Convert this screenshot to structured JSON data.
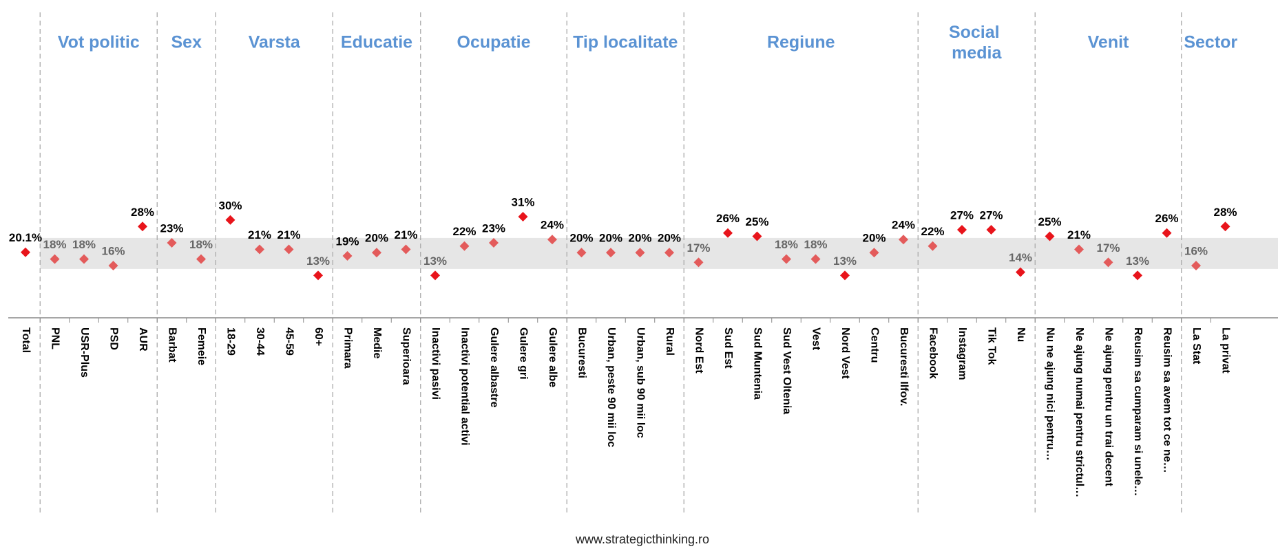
{
  "chart_data": {
    "type": "dot",
    "band": [
      15,
      24.5
    ],
    "band_color": "#e6e6e6",
    "header_color": "#5b93d3",
    "footer": "www.strategicthinking.ro",
    "groups": [
      {
        "name": null,
        "categories": [
          "Total"
        ],
        "values": [
          20.1
        ],
        "value_labels": [
          "20.1%"
        ],
        "colors": [
          "#e8141b"
        ],
        "label_colors": [
          "#000000"
        ]
      },
      {
        "name": "Vot politic",
        "categories": [
          "PNL",
          "USR-Plus",
          "PSD",
          "AUR"
        ],
        "values": [
          18,
          18,
          16,
          28
        ],
        "value_labels": [
          "18%",
          "18%",
          "16%",
          "28%"
        ],
        "colors": [
          "#e35b5b",
          "#e35b5b",
          "#e35b5b",
          "#e8141b"
        ],
        "label_colors": [
          "#666666",
          "#666666",
          "#666666",
          "#000000"
        ]
      },
      {
        "name": "Sex",
        "categories": [
          "Barbat",
          "Femeie"
        ],
        "values": [
          23,
          18
        ],
        "value_labels": [
          "23%",
          "18%"
        ],
        "colors": [
          "#e35b5b",
          "#e35b5b"
        ],
        "label_colors": [
          "#000000",
          "#666666"
        ]
      },
      {
        "name": "Varsta",
        "categories": [
          "18-29",
          "30-44",
          "45-59",
          "60+"
        ],
        "values": [
          30,
          21,
          21,
          13
        ],
        "value_labels": [
          "30%",
          "21%",
          "21%",
          "13%"
        ],
        "colors": [
          "#e8141b",
          "#e35b5b",
          "#e35b5b",
          "#e8141b"
        ],
        "label_colors": [
          "#000000",
          "#000000",
          "#000000",
          "#666666"
        ]
      },
      {
        "name": "Educatie",
        "categories": [
          "Primara",
          "Medie",
          "Superioara"
        ],
        "values": [
          19,
          20,
          21
        ],
        "value_labels": [
          "19%",
          "20%",
          "21%"
        ],
        "colors": [
          "#e35b5b",
          "#e35b5b",
          "#e35b5b"
        ],
        "label_colors": [
          "#000000",
          "#000000",
          "#000000"
        ]
      },
      {
        "name": "Ocupatie",
        "categories": [
          "Inactivi pasivi",
          "Inactivi potential activi",
          "Gulere albastre",
          "Gulere gri",
          "Gulere albe"
        ],
        "values": [
          13,
          22,
          23,
          31,
          24
        ],
        "value_labels": [
          "13%",
          "22%",
          "23%",
          "31%",
          "24%"
        ],
        "colors": [
          "#e8141b",
          "#e35b5b",
          "#e35b5b",
          "#e8141b",
          "#e35b5b"
        ],
        "label_colors": [
          "#666666",
          "#000000",
          "#000000",
          "#000000",
          "#000000"
        ]
      },
      {
        "name": "Tip localitate",
        "categories": [
          "Bucuresti",
          "Urban, peste 90 mii loc",
          "Urban, sub 90 mii loc",
          "Rural"
        ],
        "values": [
          20,
          20,
          20,
          20
        ],
        "value_labels": [
          "20%",
          "20%",
          "20%",
          "20%"
        ],
        "colors": [
          "#e35b5b",
          "#e35b5b",
          "#e35b5b",
          "#e35b5b"
        ],
        "label_colors": [
          "#000000",
          "#000000",
          "#000000",
          "#000000"
        ]
      },
      {
        "name": "Regiune",
        "categories": [
          "Nord Est",
          "Sud Est",
          "Sud Muntenia",
          "Sud Vest Oltenia",
          "Vest",
          "Nord Vest",
          "Centru",
          "Bucuresti Ilfov."
        ],
        "values": [
          17,
          26,
          25,
          18,
          18,
          13,
          20,
          24
        ],
        "value_labels": [
          "17%",
          "26%",
          "25%",
          "18%",
          "18%",
          "13%",
          "20%",
          "24%"
        ],
        "colors": [
          "#e35b5b",
          "#e8141b",
          "#e8141b",
          "#e35b5b",
          "#e35b5b",
          "#e8141b",
          "#e35b5b",
          "#e35b5b"
        ],
        "label_colors": [
          "#666666",
          "#000000",
          "#000000",
          "#666666",
          "#666666",
          "#666666",
          "#000000",
          "#000000"
        ]
      },
      {
        "name": "Social media",
        "categories": [
          "Facebook",
          "Instagram",
          "Tik Tok",
          "Nu"
        ],
        "values": [
          22,
          27,
          27,
          14
        ],
        "value_labels": [
          "22%",
          "27%",
          "27%",
          "14%"
        ],
        "colors": [
          "#e35b5b",
          "#e8141b",
          "#e8141b",
          "#e8141b"
        ],
        "label_colors": [
          "#000000",
          "#000000",
          "#000000",
          "#666666"
        ]
      },
      {
        "name": "Venit",
        "categories": [
          "Nu ne ajung nici pentru…",
          "Ne ajung numai pentru strictul…",
          "Ne ajung pentru un trai decent",
          "Reusim sa cumparam si unele…",
          "Reusim sa avem tot ce ne…"
        ],
        "values": [
          25,
          21,
          17,
          13,
          26
        ],
        "value_labels": [
          "25%",
          "21%",
          "17%",
          "13%",
          "26%"
        ],
        "colors": [
          "#e8141b",
          "#e35b5b",
          "#e35b5b",
          "#e8141b",
          "#e8141b"
        ],
        "label_colors": [
          "#000000",
          "#000000",
          "#666666",
          "#666666",
          "#000000"
        ]
      },
      {
        "name": "Sector",
        "categories": [
          "La Stat",
          "La privat"
        ],
        "values": [
          16,
          28
        ],
        "value_labels": [
          "16%",
          "28%"
        ],
        "colors": [
          "#e35b5b",
          "#e8141b"
        ],
        "label_colors": [
          "#666666",
          "#000000"
        ]
      }
    ]
  }
}
